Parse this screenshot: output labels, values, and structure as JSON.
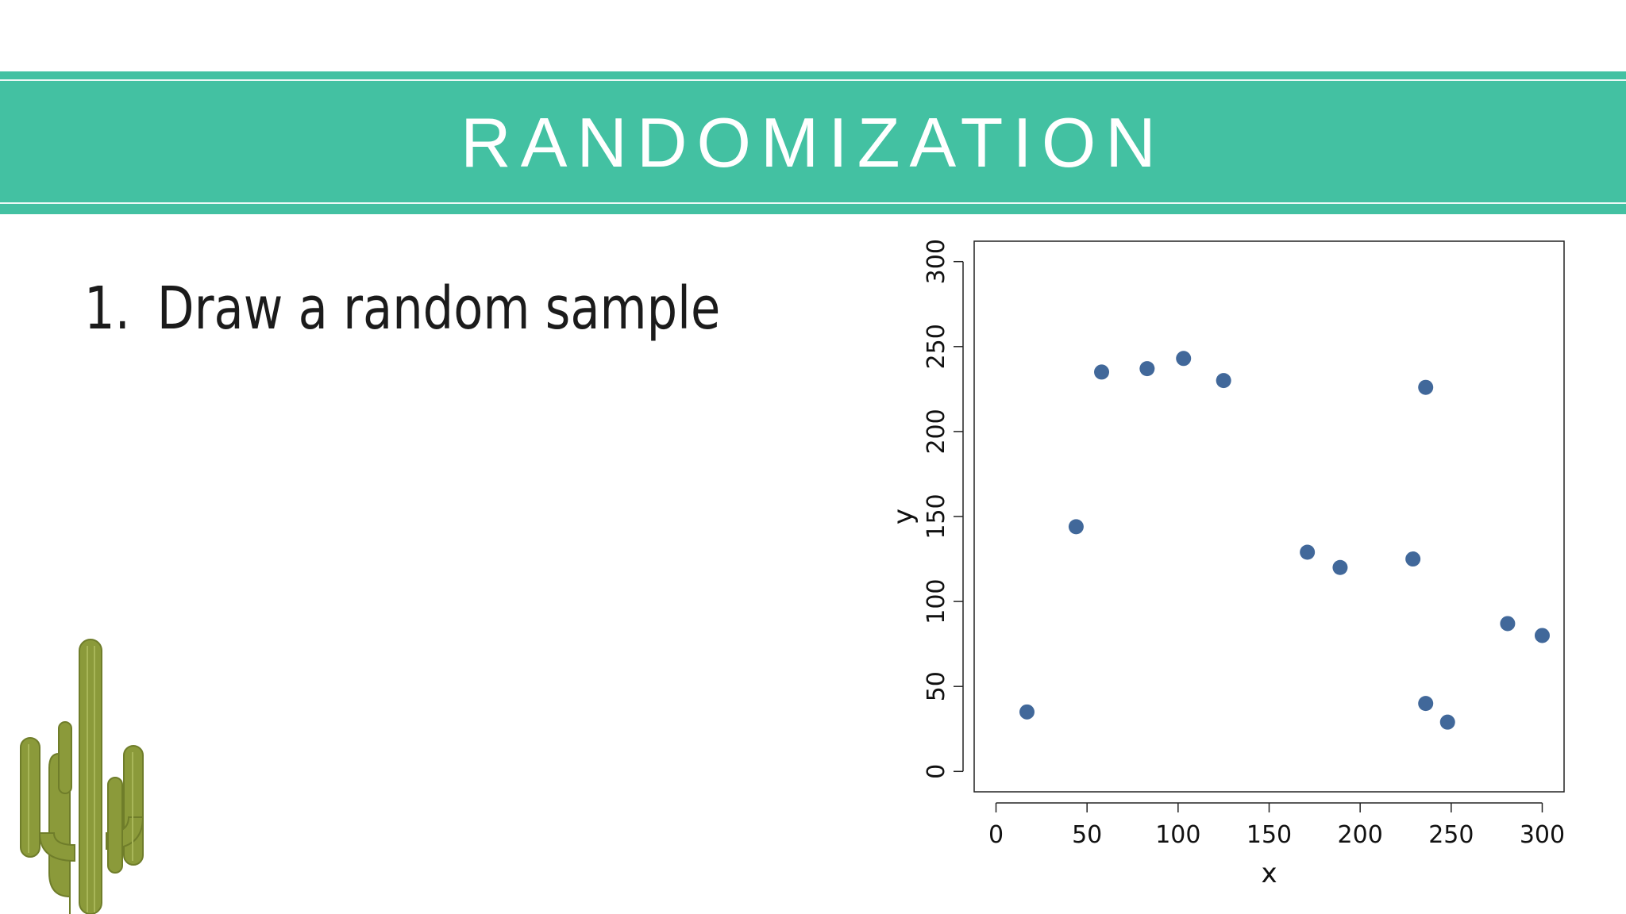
{
  "header": {
    "title": "RANDOMIZATION"
  },
  "bullet": {
    "number": "1.",
    "text": "Draw a random sample"
  },
  "colors": {
    "banner": "#43c1a2",
    "point": "#41689a"
  },
  "icons": {
    "decoration": "cactus-icon"
  },
  "chart_data": {
    "type": "scatter",
    "xlabel": "x",
    "ylabel": "y",
    "xlim": [
      -12,
      312
    ],
    "ylim": [
      -12,
      312
    ],
    "xticks": [
      0,
      50,
      100,
      150,
      200,
      250,
      300
    ],
    "yticks": [
      0,
      50,
      100,
      150,
      200,
      250,
      300
    ],
    "grid": false,
    "points": [
      {
        "x": 17,
        "y": 35
      },
      {
        "x": 44,
        "y": 144
      },
      {
        "x": 58,
        "y": 235
      },
      {
        "x": 83,
        "y": 237
      },
      {
        "x": 103,
        "y": 243
      },
      {
        "x": 125,
        "y": 230
      },
      {
        "x": 171,
        "y": 129
      },
      {
        "x": 189,
        "y": 120
      },
      {
        "x": 229,
        "y": 125
      },
      {
        "x": 236,
        "y": 226
      },
      {
        "x": 236,
        "y": 40
      },
      {
        "x": 248,
        "y": 29
      },
      {
        "x": 281,
        "y": 87
      },
      {
        "x": 300,
        "y": 80
      }
    ]
  }
}
